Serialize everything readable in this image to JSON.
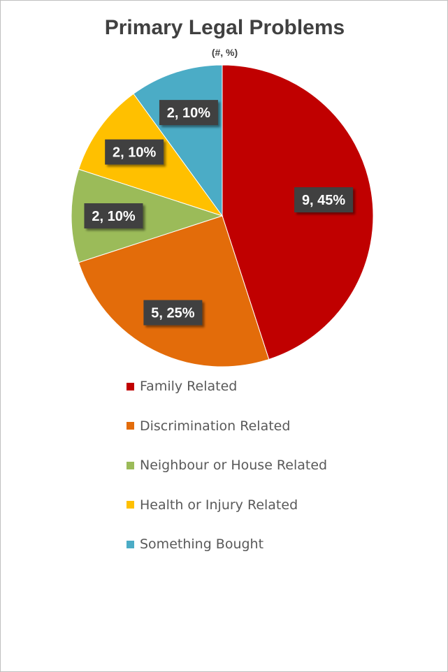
{
  "chart_data": {
    "type": "pie",
    "title": "Primary Legal Problems",
    "subtitle": "(#, %)",
    "categories": [
      "Family Related",
      "Discrimination Related",
      "Neighbour or House Related",
      "Health or Injury Related",
      "Something Bought"
    ],
    "values": [
      9,
      5,
      2,
      2,
      2
    ],
    "percents": [
      45,
      25,
      10,
      10,
      10
    ],
    "data_labels": [
      "9, 45%",
      "5, 25%",
      "2, 10%",
      "2, 10%",
      "2, 10%"
    ],
    "colors": [
      "#C00000",
      "#E36C0A",
      "#9BBB59",
      "#FFC000",
      "#4BACC6"
    ],
    "legend_position": "bottom"
  }
}
